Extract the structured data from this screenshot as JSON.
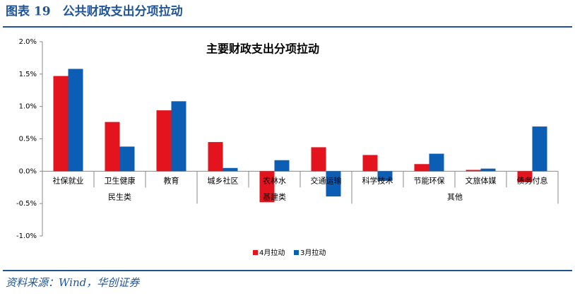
{
  "header": {
    "title": "图表 19　公共财政支出分项拉动"
  },
  "chart_data": {
    "type": "bar",
    "title": "主要财政支出分项拉动",
    "categories": [
      "社保就业",
      "卫生健康",
      "教育",
      "城乡社区",
      "农林水",
      "交通运输",
      "科学技术",
      "节能环保",
      "文旅体媒",
      "债务付息"
    ],
    "groups": [
      {
        "name": "民生类",
        "count": 3
      },
      {
        "name": "基建类",
        "count": 3
      },
      {
        "name": "其他",
        "count": 4
      }
    ],
    "series": [
      {
        "name": "4月拉动",
        "color": "#e3141e",
        "values": [
          1.47,
          0.76,
          0.94,
          0.45,
          -0.48,
          0.37,
          0.25,
          0.11,
          0.02,
          -0.17
        ]
      },
      {
        "name": "3月拉动",
        "color": "#0c5eb5",
        "values": [
          1.58,
          0.38,
          1.08,
          0.05,
          0.17,
          -0.39,
          -0.15,
          0.27,
          0.04,
          0.69
        ]
      }
    ],
    "ylim": [
      -1.0,
      2.0
    ],
    "yticks": [
      {
        "value": -1.0,
        "label": "-1.0%"
      },
      {
        "value": -0.5,
        "label": "-0.5%"
      },
      {
        "value": 0,
        "label": "0.0%"
      },
      {
        "value": 0.5,
        "label": "0.5%"
      },
      {
        "value": 1.0,
        "label": "1.0%"
      },
      {
        "value": 1.5,
        "label": "1.5%"
      },
      {
        "value": 2.0,
        "label": "2.0%"
      }
    ],
    "legend": "bottom"
  },
  "footer": {
    "source": "资料来源：Wind，华创证券"
  }
}
